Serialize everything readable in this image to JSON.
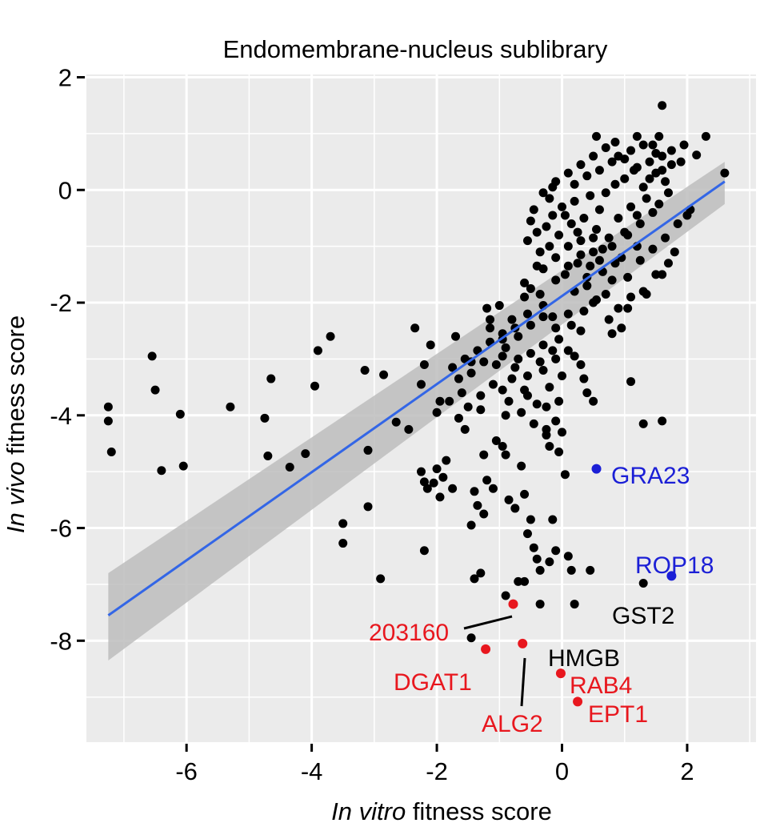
{
  "chart_data": {
    "type": "scatter",
    "title": "Endomembrane-nucleus sublibrary",
    "xlabel": {
      "italic": "In vitro",
      "plain": "fitness score"
    },
    "ylabel": {
      "italic": "In vivo",
      "plain": "fitness score"
    },
    "xlim": [
      -7.6,
      3.1
    ],
    "ylim": [
      -9.8,
      2.05
    ],
    "xticks": [
      -6,
      -4,
      -2,
      0,
      2
    ],
    "yticks": [
      2,
      0,
      -2,
      -4,
      -6,
      -8
    ],
    "xtick_labels": [
      "-6",
      "-4",
      "-2",
      "0",
      "2"
    ],
    "ytick_labels": [
      "2",
      "0",
      "-2",
      "-4",
      "-6",
      "-8"
    ],
    "grid": true,
    "colors": {
      "panel": "#ebebeb",
      "gridline": "#ffffff",
      "points": "#000000",
      "fit_line": "#3366e6",
      "confidence_band": "#bdbdbd",
      "highlight_red": "#e8171e",
      "highlight_blue": "#1b1fd6"
    },
    "fit": {
      "x": [
        -7.25,
        2.6
      ],
      "y": [
        -7.55,
        0.15
      ],
      "band_lower": [
        -8.35,
        -0.25
      ],
      "band_upper": [
        -6.8,
        0.5
      ]
    },
    "series": [
      {
        "color": "#000000",
        "points": [
          [
            -7.25,
            -3.85
          ],
          [
            -7.25,
            -4.1
          ],
          [
            -7.2,
            -4.65
          ],
          [
            -6.55,
            -2.95
          ],
          [
            -6.5,
            -3.55
          ],
          [
            -6.4,
            -4.98
          ],
          [
            -6.1,
            -3.98
          ],
          [
            -6.05,
            -4.9
          ],
          [
            -5.3,
            -3.85
          ],
          [
            -4.75,
            -4.05
          ],
          [
            -4.7,
            -4.72
          ],
          [
            -4.65,
            -3.35
          ],
          [
            -4.35,
            -4.92
          ],
          [
            -4.1,
            -4.68
          ],
          [
            -3.95,
            -3.48
          ],
          [
            -3.9,
            -2.85
          ],
          [
            -3.7,
            -2.6
          ],
          [
            -3.5,
            -5.92
          ],
          [
            -3.5,
            -6.27
          ],
          [
            -3.15,
            -3.2
          ],
          [
            -3.1,
            -4.62
          ],
          [
            -3.1,
            -5.62
          ],
          [
            -2.9,
            -6.9
          ],
          [
            -2.85,
            -3.28
          ],
          [
            -2.65,
            -4.12
          ],
          [
            -2.45,
            -4.25
          ],
          [
            -2.35,
            -2.45
          ],
          [
            -2.2,
            -3.1
          ],
          [
            -2.2,
            -5.18
          ],
          [
            -2.2,
            -6.4
          ],
          [
            -2.15,
            -5.3
          ],
          [
            -2.1,
            -2.75
          ],
          [
            -2.05,
            -5.2
          ],
          [
            -2.0,
            -4.95
          ],
          [
            -1.9,
            -5.1
          ],
          [
            -1.85,
            -4.8
          ],
          [
            -1.75,
            -5.3
          ],
          [
            -1.7,
            -2.6
          ],
          [
            -1.65,
            -3.35
          ],
          [
            -1.55,
            -4.25
          ],
          [
            -1.45,
            -3.05
          ],
          [
            -1.45,
            -3.25
          ],
          [
            -1.4,
            -5.35
          ],
          [
            -1.4,
            -6.9
          ],
          [
            -1.3,
            -3.9
          ],
          [
            -1.25,
            -4.7
          ],
          [
            -1.2,
            -2.1
          ],
          [
            -1.15,
            -2.45
          ],
          [
            -1.05,
            -3.1
          ],
          [
            -0.95,
            -2.55
          ],
          [
            -0.95,
            -3.55
          ],
          [
            -0.9,
            -4.0
          ],
          [
            -0.9,
            -4.7
          ],
          [
            -0.85,
            -5.5
          ],
          [
            -0.75,
            -5.65
          ],
          [
            -0.7,
            -6.95
          ],
          [
            -0.65,
            -4.9
          ],
          [
            -0.6,
            -5.4
          ],
          [
            -0.55,
            -6.1
          ],
          [
            -0.5,
            -5.85
          ],
          [
            -0.45,
            -6.35
          ],
          [
            -0.4,
            -6.55
          ],
          [
            -0.35,
            -6.75
          ],
          [
            -0.3,
            -2.25
          ],
          [
            -0.25,
            -4.25
          ],
          [
            -0.2,
            -4.55
          ],
          [
            -0.15,
            -5.85
          ],
          [
            -0.1,
            -6.4
          ],
          [
            -0.05,
            -4.65
          ],
          [
            0.0,
            -4.3
          ],
          [
            0.05,
            -5.05
          ],
          [
            0.1,
            -6.5
          ],
          [
            0.15,
            -6.75
          ],
          [
            0.2,
            -7.35
          ],
          [
            0.3,
            -3.1
          ],
          [
            0.35,
            -3.35
          ],
          [
            0.4,
            -3.6
          ],
          [
            0.5,
            -3.75
          ],
          [
            -1.45,
            -5.95
          ],
          [
            -1.35,
            -5.6
          ],
          [
            -1.25,
            -5.75
          ],
          [
            -1.2,
            -5.15
          ],
          [
            -1.1,
            -5.3
          ],
          [
            -1.05,
            -4.45
          ],
          [
            -0.95,
            -4.55
          ],
          [
            -1.45,
            -7.95
          ],
          [
            -0.9,
            -7.2
          ],
          [
            -1.3,
            -6.8
          ],
          [
            1.1,
            -3.4
          ],
          [
            1.3,
            -4.15
          ],
          [
            1.6,
            -4.1
          ],
          [
            1.3,
            -6.98
          ],
          [
            0.45,
            -6.75
          ],
          [
            -0.35,
            -7.35
          ],
          [
            -1.95,
            -5.45
          ],
          [
            -2.25,
            -5.0
          ],
          [
            -0.6,
            -6.95
          ],
          [
            -0.2,
            -6.6
          ],
          [
            -0.1,
            -4.1
          ],
          [
            -0.25,
            -3.85
          ],
          [
            -0.55,
            -3.65
          ],
          [
            -0.6,
            -1.65
          ],
          [
            -0.55,
            -0.9
          ],
          [
            -0.5,
            -0.55
          ],
          [
            -0.45,
            -0.35
          ],
          [
            -0.4,
            -0.75
          ],
          [
            -0.35,
            -1.1
          ],
          [
            -0.3,
            -1.4
          ],
          [
            -0.25,
            -0.65
          ],
          [
            -0.2,
            -0.15
          ],
          [
            -0.15,
            -0.45
          ],
          [
            -0.1,
            -1.2
          ],
          [
            -0.05,
            -0.8
          ],
          [
            0.0,
            -0.3
          ],
          [
            0.05,
            -1.5
          ],
          [
            0.1,
            -1.0
          ],
          [
            0.15,
            -0.6
          ],
          [
            0.2,
            -0.2
          ],
          [
            0.25,
            -1.3
          ],
          [
            0.3,
            -0.9
          ],
          [
            0.35,
            -0.5
          ],
          [
            0.4,
            -1.7
          ],
          [
            0.45,
            -0.1
          ],
          [
            0.5,
            -1.1
          ],
          [
            0.55,
            -0.7
          ],
          [
            0.6,
            -0.35
          ],
          [
            0.65,
            -1.45
          ],
          [
            0.7,
            -0.05
          ],
          [
            0.75,
            -0.85
          ],
          [
            0.8,
            -1.6
          ],
          [
            0.85,
            0.1
          ],
          [
            0.9,
            -0.5
          ],
          [
            0.95,
            -1.2
          ],
          [
            1.0,
            0.2
          ],
          [
            1.05,
            -0.8
          ],
          [
            1.1,
            -0.3
          ],
          [
            1.15,
            0.35
          ],
          [
            1.2,
            -1.0
          ],
          [
            1.25,
            -0.6
          ],
          [
            1.3,
            0.05
          ],
          [
            1.35,
            -0.15
          ],
          [
            1.4,
            0.5
          ],
          [
            1.45,
            -0.4
          ],
          [
            1.5,
            0.3
          ],
          [
            1.55,
            -0.25
          ],
          [
            1.6,
            0.6
          ],
          [
            1.65,
            0.15
          ],
          [
            1.7,
            -0.05
          ],
          [
            1.75,
            0.45
          ],
          [
            -0.3,
            -0.05
          ],
          [
            -0.1,
            0.15
          ],
          [
            0.1,
            0.3
          ],
          [
            0.3,
            0.45
          ],
          [
            0.5,
            0.6
          ],
          [
            0.7,
            0.75
          ],
          [
            0.9,
            0.6
          ],
          [
            1.1,
            0.7
          ],
          [
            1.3,
            0.8
          ],
          [
            1.5,
            0.65
          ],
          [
            0.6,
            0.35
          ],
          [
            0.8,
            0.5
          ],
          [
            1.0,
            0.55
          ],
          [
            1.2,
            0.4
          ],
          [
            1.4,
            0.2
          ],
          [
            1.6,
            0.35
          ],
          [
            0.2,
            0.1
          ],
          [
            0.4,
            0.25
          ],
          [
            -0.2,
            -1.0
          ],
          [
            -0.4,
            -1.35
          ],
          [
            -0.6,
            -1.9
          ],
          [
            -0.8,
            -2.3
          ],
          [
            -1.0,
            -2.05
          ],
          [
            -0.7,
            -2.6
          ],
          [
            -0.5,
            -2.4
          ],
          [
            -0.3,
            -2.75
          ],
          [
            -0.1,
            -2.45
          ],
          [
            0.1,
            -2.2
          ],
          [
            0.3,
            -2.5
          ],
          [
            0.5,
            -2.0
          ],
          [
            0.7,
            -1.85
          ],
          [
            0.9,
            -2.1
          ],
          [
            1.1,
            -1.9
          ],
          [
            1.3,
            -1.8
          ],
          [
            1.5,
            -1.5
          ],
          [
            1.7,
            -1.3
          ],
          [
            -0.9,
            -2.8
          ],
          [
            -0.7,
            -3.0
          ],
          [
            -0.5,
            -2.9
          ],
          [
            -0.3,
            -3.2
          ],
          [
            -0.1,
            -3.0
          ],
          [
            0.1,
            -2.85
          ],
          [
            -1.6,
            -3.6
          ],
          [
            -1.8,
            -3.75
          ],
          [
            -2.0,
            -3.95
          ],
          [
            -1.5,
            -3.85
          ],
          [
            -1.3,
            -3.65
          ],
          [
            -1.1,
            -3.45
          ],
          [
            -0.8,
            -3.35
          ],
          [
            -0.6,
            -3.55
          ],
          [
            -0.4,
            -3.8
          ],
          [
            -0.2,
            -3.5
          ],
          [
            0.0,
            -3.3
          ],
          [
            0.2,
            -2.95
          ],
          [
            1.55,
            0.95
          ],
          [
            1.6,
            1.5
          ],
          [
            1.95,
            0.8
          ],
          [
            2.15,
            0.62
          ],
          [
            2.3,
            0.95
          ],
          [
            2.6,
            0.3
          ],
          [
            2.05,
            -0.35
          ],
          [
            1.8,
            -1.1
          ],
          [
            1.6,
            -1.5
          ],
          [
            1.35,
            -1.85
          ],
          [
            1.05,
            -2.1
          ],
          [
            0.8,
            -2.55
          ],
          [
            0.55,
            0.95
          ],
          [
            0.85,
            0.85
          ],
          [
            1.2,
            0.95
          ],
          [
            1.45,
            0.8
          ],
          [
            1.75,
            0.7
          ],
          [
            1.9,
            0.5
          ],
          [
            -0.15,
            0.05
          ],
          [
            0.05,
            -0.45
          ],
          [
            0.25,
            -0.75
          ],
          [
            0.45,
            -1.35
          ],
          [
            0.65,
            -1.05
          ],
          [
            0.85,
            -1.3
          ],
          [
            1.05,
            -1.55
          ],
          [
            1.25,
            -1.25
          ],
          [
            1.45,
            -1.05
          ],
          [
            1.65,
            -0.85
          ],
          [
            1.85,
            -0.6
          ],
          [
            2.0,
            -0.45
          ],
          [
            -0.05,
            -2.65
          ],
          [
            0.15,
            -2.4
          ],
          [
            0.35,
            -2.15
          ],
          [
            0.55,
            -1.95
          ],
          [
            0.75,
            -2.3
          ],
          [
            0.95,
            -2.45
          ],
          [
            -1.15,
            -2.7
          ],
          [
            -0.95,
            -2.95
          ],
          [
            -0.75,
            -3.15
          ],
          [
            -0.55,
            -3.3
          ],
          [
            -0.35,
            -3.05
          ],
          [
            -0.15,
            -2.85
          ],
          [
            -1.75,
            -3.15
          ],
          [
            -1.55,
            -3.0
          ],
          [
            -1.35,
            -2.85
          ],
          [
            -1.25,
            -3.05
          ],
          [
            -0.85,
            -3.75
          ],
          [
            -0.65,
            -3.95
          ],
          [
            -0.45,
            -4.15
          ],
          [
            -0.25,
            -4.35
          ],
          [
            -0.05,
            -3.75
          ],
          [
            -1.65,
            -4.05
          ],
          [
            -1.95,
            -3.75
          ],
          [
            -2.25,
            -3.45
          ],
          [
            0.2,
            -1.8
          ],
          [
            0.4,
            -1.55
          ],
          [
            0.6,
            -1.25
          ],
          [
            0.8,
            -1.0
          ],
          [
            1.0,
            -0.75
          ],
          [
            1.2,
            -0.45
          ],
          [
            -0.5,
            -1.75
          ],
          [
            -0.3,
            -2.05
          ],
          [
            -0.1,
            -1.6
          ],
          [
            0.1,
            -1.35
          ],
          [
            0.3,
            -1.15
          ],
          [
            0.5,
            -0.85
          ],
          [
            -0.55,
            -2.2
          ],
          [
            -0.75,
            -2.45
          ],
          [
            -0.95,
            -2.65
          ],
          [
            -1.15,
            -2.3
          ],
          [
            -0.35,
            -1.85
          ],
          [
            -0.15,
            -2.25
          ]
        ]
      }
    ],
    "highlighted": [
      {
        "label": "GRA23",
        "x": 0.55,
        "y": -4.95,
        "color": "#1b1fd6"
      },
      {
        "label": "ROP18",
        "x": 1.75,
        "y": -6.85,
        "color": "#1b1fd6"
      },
      {
        "label": "203160",
        "x": -0.78,
        "y": -7.35,
        "color": "#e8171e"
      },
      {
        "label": "DGAT1",
        "x": -1.22,
        "y": -8.15,
        "color": "#e8171e"
      },
      {
        "label": "ALG2",
        "x": -0.63,
        "y": -8.05,
        "color": "#e8171e"
      },
      {
        "label": "RAB4",
        "x": -0.02,
        "y": -8.58,
        "color": "#e8171e"
      },
      {
        "label": "EPT1",
        "x": 0.25,
        "y": -9.08,
        "color": "#e8171e"
      }
    ],
    "annotations": [
      {
        "text": "GRA23",
        "color": "#1b1fd6"
      },
      {
        "text": "ROP18",
        "color": "#1b1fd6"
      },
      {
        "text": "GST2",
        "color": "#000000"
      },
      {
        "text": "203160",
        "color": "#e8171e"
      },
      {
        "text": "HMGB",
        "color": "#000000"
      },
      {
        "text": "DGAT1",
        "color": "#e8171e"
      },
      {
        "text": "RAB4",
        "color": "#e8171e"
      },
      {
        "text": "ALG2",
        "color": "#e8171e"
      },
      {
        "text": "EPT1",
        "color": "#e8171e"
      }
    ]
  }
}
